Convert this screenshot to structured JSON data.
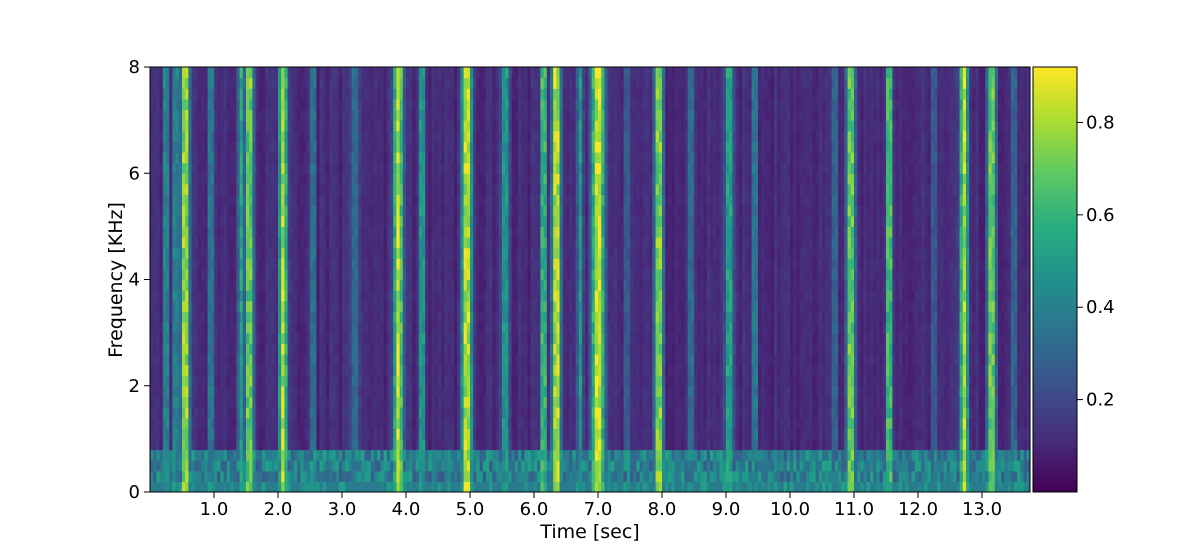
{
  "chart_data": {
    "type": "heatmap",
    "title": "",
    "xlabel": "Time [sec]",
    "ylabel": "Frequency [KHz]",
    "xlim": [
      0,
      13.75
    ],
    "ylim": [
      0,
      8
    ],
    "xticks": [
      "1.0",
      "2.0",
      "3.0",
      "4.0",
      "5.0",
      "6.0",
      "7.0",
      "8.0",
      "9.0",
      "10.0",
      "11.0",
      "12.0",
      "13.0"
    ],
    "yticks": [
      "0",
      "2",
      "4",
      "6",
      "8"
    ],
    "colorbar": {
      "ticks": [
        "0.2",
        "0.4",
        "0.6",
        "0.8"
      ],
      "range": [
        0.0,
        0.92
      ],
      "colormap": "viridis"
    },
    "bright_bands": [
      {
        "t": 0.25,
        "w": 0.05,
        "v": 0.55
      },
      {
        "t": 0.4,
        "w": 0.06,
        "v": 0.5
      },
      {
        "t": 0.55,
        "w": 0.08,
        "v": 0.88
      },
      {
        "t": 0.95,
        "w": 0.06,
        "v": 0.45
      },
      {
        "t": 1.42,
        "w": 0.06,
        "v": 0.55
      },
      {
        "t": 1.55,
        "w": 0.08,
        "v": 0.8
      },
      {
        "t": 2.08,
        "w": 0.08,
        "v": 0.85
      },
      {
        "t": 2.55,
        "w": 0.05,
        "v": 0.45
      },
      {
        "t": 3.2,
        "w": 0.1,
        "v": 0.35
      },
      {
        "t": 3.88,
        "w": 0.09,
        "v": 0.88
      },
      {
        "t": 4.25,
        "w": 0.06,
        "v": 0.6
      },
      {
        "t": 4.95,
        "w": 0.1,
        "v": 0.9
      },
      {
        "t": 5.55,
        "w": 0.08,
        "v": 0.55
      },
      {
        "t": 6.15,
        "w": 0.06,
        "v": 0.75
      },
      {
        "t": 6.35,
        "w": 0.08,
        "v": 0.92
      },
      {
        "t": 6.72,
        "w": 0.06,
        "v": 0.5
      },
      {
        "t": 7.0,
        "w": 0.12,
        "v": 0.92
      },
      {
        "t": 7.45,
        "w": 0.05,
        "v": 0.35
      },
      {
        "t": 7.95,
        "w": 0.08,
        "v": 0.85
      },
      {
        "t": 8.45,
        "w": 0.06,
        "v": 0.4
      },
      {
        "t": 9.05,
        "w": 0.08,
        "v": 0.6
      },
      {
        "t": 9.45,
        "w": 0.05,
        "v": 0.5
      },
      {
        "t": 10.7,
        "w": 0.05,
        "v": 0.4
      },
      {
        "t": 10.95,
        "w": 0.08,
        "v": 0.8
      },
      {
        "t": 11.55,
        "w": 0.06,
        "v": 0.78
      },
      {
        "t": 12.25,
        "w": 0.05,
        "v": 0.35
      },
      {
        "t": 12.72,
        "w": 0.08,
        "v": 0.85
      },
      {
        "t": 13.15,
        "w": 0.08,
        "v": 0.8
      },
      {
        "t": 13.5,
        "w": 0.05,
        "v": 0.4
      }
    ]
  }
}
